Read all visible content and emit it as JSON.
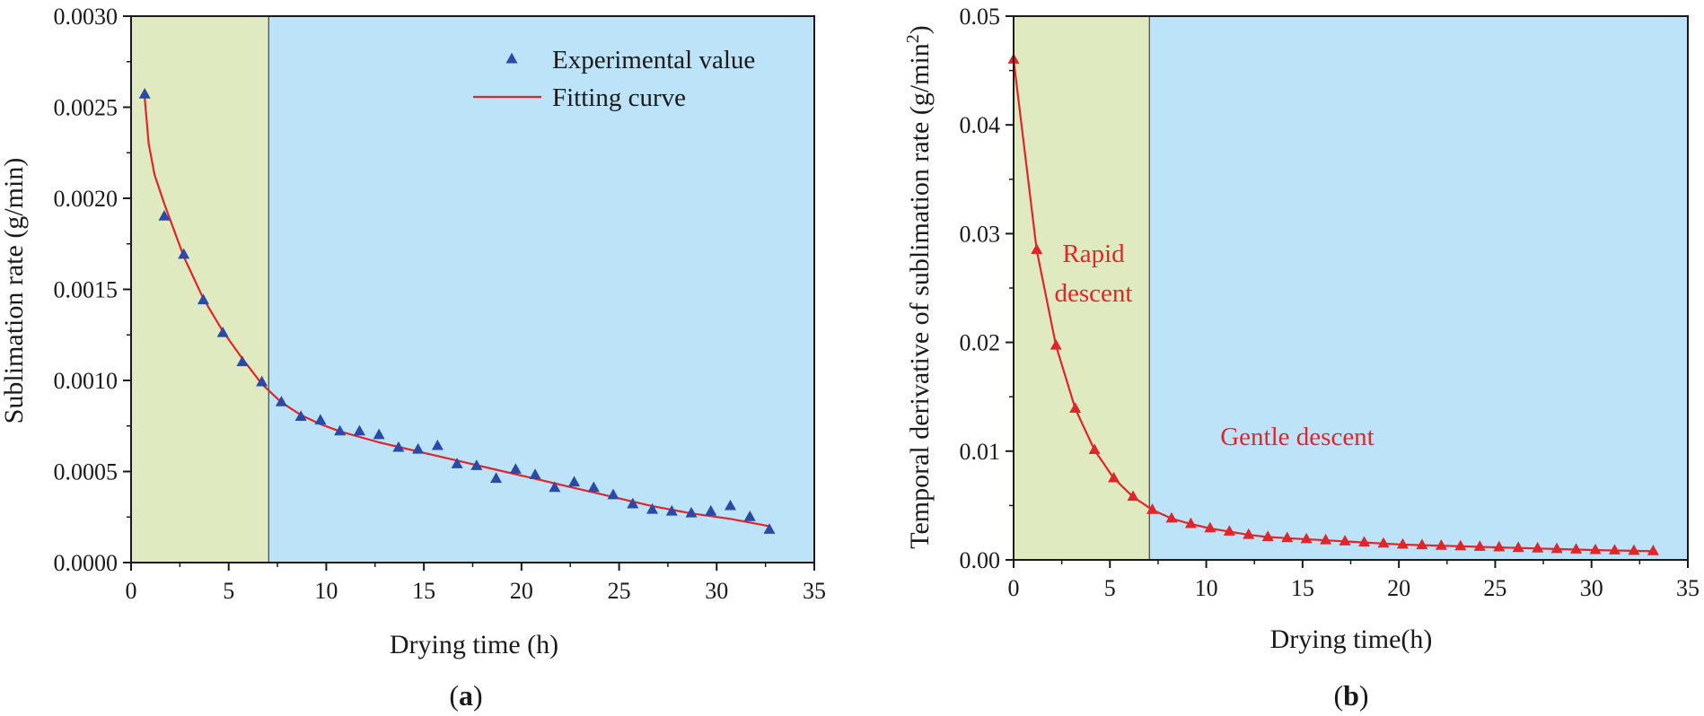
{
  "chart_data": [
    {
      "id": "a",
      "type": "scatter",
      "panel_label": "a",
      "title": "",
      "xlabel": "Drying time (h)",
      "ylabel": "Sublimation rate (g/min)",
      "xlim": [
        0,
        35
      ],
      "ylim": [
        0,
        0.003
      ],
      "xticks": [
        0,
        5,
        10,
        15,
        20,
        25,
        30,
        35
      ],
      "yticks": [
        0.0,
        0.0005,
        0.001,
        0.0015,
        0.002,
        0.0025,
        0.003
      ],
      "ytick_labels": [
        "0.0000",
        "0.0005",
        "0.0010",
        "0.0015",
        "0.0020",
        "0.0025",
        "0.0030"
      ],
      "xtick_labels": [
        "0",
        "5",
        "10",
        "15",
        "20",
        "25",
        "30",
        "35"
      ],
      "regions": [
        {
          "name": "rapid",
          "x_from": 0,
          "x_to": 7.05,
          "color": "#e0eac0"
        },
        {
          "name": "gentle",
          "x_from": 7.05,
          "x_to": 35,
          "color": "#bce3f7"
        }
      ],
      "series": [
        {
          "name": "Experimental value",
          "kind": "scatter",
          "marker": "triangle",
          "color": "#2a4aa8",
          "x": [
            0.7,
            1.7,
            2.7,
            3.7,
            4.7,
            5.7,
            6.7,
            7.7,
            8.7,
            9.7,
            10.7,
            11.7,
            12.7,
            13.7,
            14.7,
            15.7,
            16.7,
            17.7,
            18.7,
            19.7,
            20.7,
            21.7,
            22.7,
            23.7,
            24.7,
            25.7,
            26.7,
            27.7,
            28.7,
            29.7,
            30.7,
            31.7,
            32.7
          ],
          "y": [
            0.00257,
            0.0019,
            0.00169,
            0.00144,
            0.00126,
            0.0011,
            0.00099,
            0.00088,
            0.0008,
            0.00078,
            0.00072,
            0.00072,
            0.0007,
            0.00063,
            0.00062,
            0.00064,
            0.00054,
            0.00053,
            0.00046,
            0.00051,
            0.00048,
            0.00041,
            0.00044,
            0.00041,
            0.00037,
            0.00032,
            0.00029,
            0.00028,
            0.00027,
            0.00028,
            0.00031,
            0.00025,
            0.00018
          ]
        },
        {
          "name": "Fitting curve",
          "kind": "line",
          "color": "#e0262b",
          "x": [
            0.7,
            0.9,
            1.2,
            1.7,
            2.7,
            3.7,
            4.7,
            5.7,
            6.7,
            7.7,
            8.7,
            9.7,
            10.7,
            12.7,
            14.7,
            16.7,
            18.7,
            20.7,
            22.7,
            24.7,
            26.7,
            28.7,
            30.7,
            32.7
          ],
          "y": [
            0.00255,
            0.0023,
            0.00213,
            0.00197,
            0.00168,
            0.00145,
            0.00127,
            0.00112,
            0.00098,
            0.00088,
            0.00081,
            0.00076,
            0.00072,
            0.00066,
            0.00061,
            0.00056,
            0.00051,
            0.00046,
            0.00041,
            0.00036,
            0.00031,
            0.00027,
            0.00024,
            0.0002
          ]
        }
      ],
      "legend": {
        "position": "top-right",
        "entries": [
          "Experimental value",
          "Fitting curve"
        ]
      }
    },
    {
      "id": "b",
      "type": "line",
      "panel_label": "b",
      "title": "",
      "xlabel": "Drying time(h)",
      "ylabel_prefix": "Temporal derivative of sublimation rate (g/min",
      "ylabel_sup": "2",
      "ylabel_suffix": ")",
      "xlim": [
        0,
        35
      ],
      "ylim": [
        0,
        0.05
      ],
      "xticks": [
        0,
        5,
        10,
        15,
        20,
        25,
        30,
        35
      ],
      "yticks": [
        0.0,
        0.01,
        0.02,
        0.03,
        0.04,
        0.05
      ],
      "ytick_labels": [
        "0.00",
        "0.01",
        "0.02",
        "0.03",
        "0.04",
        "0.05"
      ],
      "xtick_labels": [
        "0",
        "5",
        "10",
        "15",
        "20",
        "25",
        "30",
        "35"
      ],
      "regions": [
        {
          "name": "rapid",
          "x_from": 0,
          "x_to": 7.05,
          "color": "#e0eac0"
        },
        {
          "name": "gentle",
          "x_from": 7.05,
          "x_to": 35,
          "color": "#bce3f7"
        }
      ],
      "series": [
        {
          "name": "Temporal derivative",
          "kind": "line+markers",
          "marker": "triangle",
          "color": "#e0262b",
          "x": [
            0,
            1.2,
            2.2,
            3.2,
            4.2,
            5.2,
            6.2,
            7.2,
            8.2,
            9.2,
            10.2,
            11.2,
            12.2,
            13.2,
            14.2,
            15.2,
            16.2,
            17.2,
            18.2,
            19.2,
            20.2,
            21.2,
            22.2,
            23.2,
            24.2,
            25.2,
            26.2,
            27.2,
            28.2,
            29.2,
            30.2,
            31.2,
            32.2,
            33.2
          ],
          "y": [
            0.046,
            0.0285,
            0.0197,
            0.0139,
            0.0101,
            0.0075,
            0.0058,
            0.0046,
            0.0038,
            0.0033,
            0.0029,
            0.0026,
            0.0023,
            0.0021,
            0.002,
            0.0019,
            0.0018,
            0.0017,
            0.0016,
            0.0015,
            0.0014,
            0.00135,
            0.0013,
            0.00125,
            0.0012,
            0.00115,
            0.0011,
            0.00105,
            0.001,
            0.00095,
            0.0009,
            0.00087,
            0.00083,
            0.0008
          ]
        }
      ],
      "annotations": [
        {
          "lines": [
            "Rapid",
            "descent"
          ],
          "x": 4.1,
          "y": 0.0273,
          "color": "#e0262b"
        },
        {
          "lines": [
            "Gentle descent"
          ],
          "x": 20.2,
          "y": 0.0107,
          "color": "#e0262b"
        }
      ]
    }
  ]
}
